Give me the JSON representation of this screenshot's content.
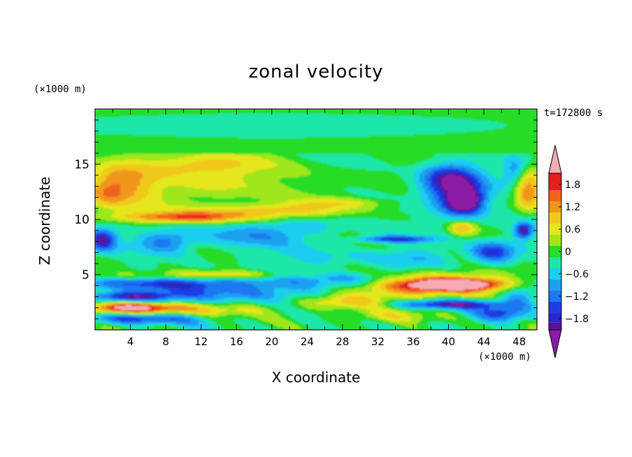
{
  "chart_data": {
    "type": "heatmap",
    "title": "zonal velocity",
    "xlabel": "X coordinate",
    "ylabel": "Z coordinate",
    "x_unit": "(×1000 m)",
    "y_unit": "(×1000 m)",
    "time_label": "t=172800 s",
    "xlim": [
      0,
      50
    ],
    "ylim": [
      0,
      20
    ],
    "x_ticks": [
      "4",
      "8",
      "12",
      "16",
      "20",
      "24",
      "28",
      "32",
      "36",
      "40",
      "44",
      "48"
    ],
    "y_ticks": [
      "5",
      "10",
      "15"
    ],
    "colorbar": {
      "range": [
        -2.1,
        2.1
      ],
      "extend": "both",
      "tick_labels": [
        "1.8",
        "1.2",
        "0.6",
        "0",
        "−0.6",
        "−1.2",
        "−1.8"
      ],
      "levels": [
        {
          "value": -2.1,
          "color": "#8c1aa6"
        },
        {
          "value": -1.9,
          "color": "#5b1296"
        },
        {
          "value": -1.65,
          "color": "#2828c8"
        },
        {
          "value": -1.35,
          "color": "#1e3ce6"
        },
        {
          "value": -1.05,
          "color": "#1e78f0"
        },
        {
          "value": -0.75,
          "color": "#1ea0f0"
        },
        {
          "value": -0.45,
          "color": "#1ecdf0"
        },
        {
          "value": -0.15,
          "color": "#1ee6a8"
        },
        {
          "value": 0.15,
          "color": "#28dc28"
        },
        {
          "value": 0.45,
          "color": "#a0e61e"
        },
        {
          "value": 0.75,
          "color": "#e6e61e"
        },
        {
          "value": 1.05,
          "color": "#f0c81e"
        },
        {
          "value": 1.35,
          "color": "#f0961e"
        },
        {
          "value": 1.65,
          "color": "#f0641e"
        },
        {
          "value": 1.95,
          "color": "#e61e1e"
        },
        {
          "value": 2.1,
          "color": "#f5aab4"
        }
      ]
    },
    "field_features": [
      {
        "desc": "upper uniform band",
        "x": [
          0,
          50
        ],
        "z": [
          16,
          20
        ],
        "value": -0.1
      },
      {
        "desc": "negative core",
        "x": 43,
        "z": 11.7,
        "value": -2.0
      },
      {
        "desc": "positive jet",
        "x": 41,
        "z": 4.0,
        "value": 2.0
      },
      {
        "desc": "positive jet",
        "x": 4,
        "z": 2.0,
        "value": 1.9
      },
      {
        "desc": "positive layer",
        "x": 10,
        "z": 9.0,
        "value": 1.4
      },
      {
        "desc": "positive left edge",
        "x": 0.5,
        "z": 12.8,
        "value": 1.6
      }
    ]
  }
}
